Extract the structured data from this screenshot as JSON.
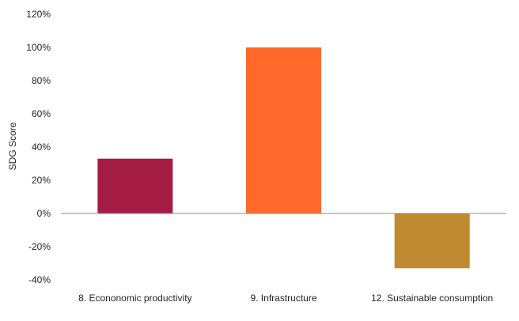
{
  "chart_data": {
    "type": "bar",
    "categories": [
      "8. Econonomic productivity",
      "9. Infrastructure",
      "12. Sustainable consumption"
    ],
    "values": [
      33,
      100,
      -33
    ],
    "colors": [
      "#a41c43",
      "#ff6a2a",
      "#c08a30"
    ],
    "ylabel": "SDG Score",
    "xlabel": "",
    "ylim": [
      -40,
      120
    ],
    "yticks": [
      -40,
      -20,
      0,
      20,
      40,
      60,
      80,
      100,
      120
    ],
    "tick_labels": [
      "-40%",
      "-20%",
      "0%",
      "20%",
      "40%",
      "60%",
      "80%",
      "100%",
      "120%"
    ],
    "grid": false,
    "legend": "none"
  }
}
